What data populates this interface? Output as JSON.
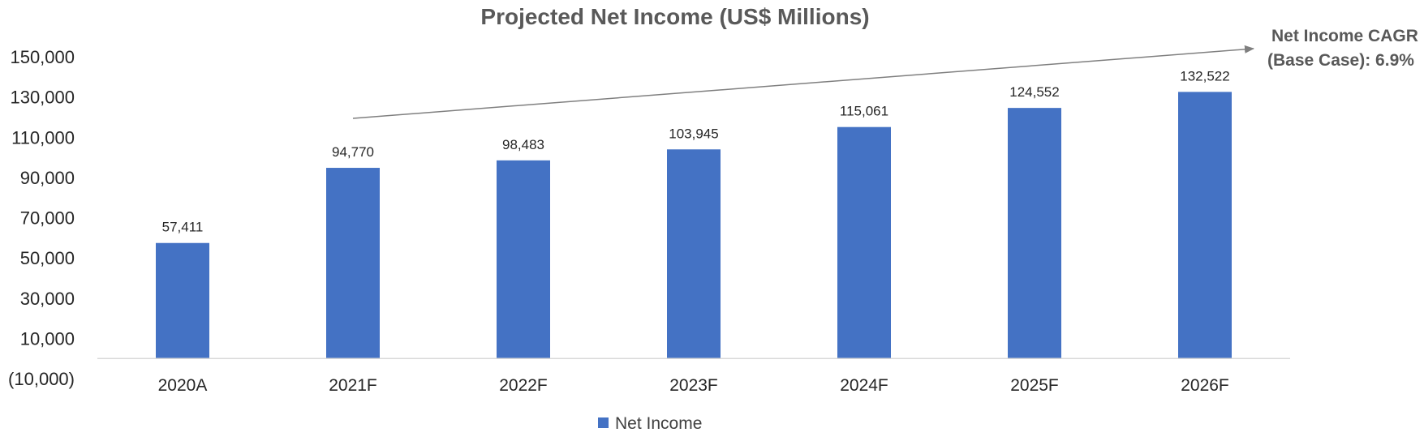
{
  "chart_data": {
    "type": "bar",
    "title": "Projected Net Income (US$ Millions)",
    "categories": [
      "2020A",
      "2021F",
      "2022F",
      "2023F",
      "2024F",
      "2025F",
      "2026F"
    ],
    "series": [
      {
        "name": "Net Income",
        "values": [
          57411,
          94770,
          98483,
          103945,
          115061,
          124552,
          132522
        ]
      }
    ],
    "data_labels": [
      "57,411",
      "94,770",
      "98,483",
      "103,945",
      "115,061",
      "124,552",
      "132,522"
    ],
    "y_ticks": [
      "150,000",
      "130,000",
      "110,000",
      "90,000",
      "70,000",
      "50,000",
      "30,000",
      "10,000",
      "(10,000)"
    ],
    "ylim": [
      -10000,
      150000
    ],
    "grid": false,
    "legend_position": "bottom",
    "bar_color": "#4472C4",
    "annotation": {
      "line1": "Net Income CAGR",
      "line2": "(Base Case): 6.9%"
    }
  }
}
